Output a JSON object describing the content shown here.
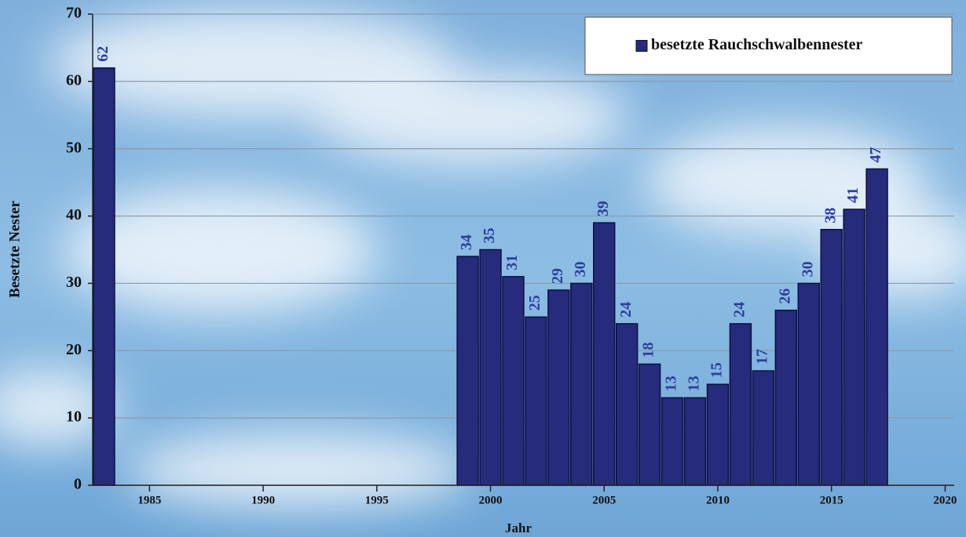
{
  "chart_data": {
    "type": "bar",
    "x": [
      1983,
      1999,
      2000,
      2001,
      2002,
      2003,
      2004,
      2005,
      2006,
      2007,
      2008,
      2009,
      2010,
      2011,
      2012,
      2013,
      2014,
      2015,
      2016,
      2017
    ],
    "series": [
      {
        "name": "besetzte Rauchschwalbennester",
        "color": "#262b7c",
        "values": [
          62,
          34,
          35,
          31,
          25,
          29,
          30,
          39,
          24,
          18,
          13,
          13,
          15,
          24,
          17,
          26,
          30,
          38,
          41,
          47
        ]
      }
    ],
    "xlabel": "Jahr",
    "ylabel": "Besetzte Nester",
    "xlim": [
      1982.5,
      2020.4
    ],
    "xticks": [
      1985,
      1990,
      1995,
      2000,
      2005,
      2010,
      2015,
      2020
    ],
    "ylim": [
      0,
      70
    ],
    "yticks": [
      0,
      10,
      20,
      30,
      40,
      50,
      60,
      70
    ],
    "grid": true,
    "legend": "upper right"
  }
}
